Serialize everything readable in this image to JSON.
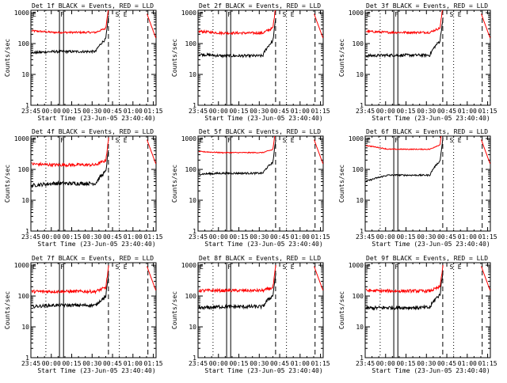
{
  "chart_data": [
    {
      "type": "line",
      "title": "Det 1f BLACK = Events, RED = LLD",
      "ylabel": "Counts/sec",
      "xlabel": "Start Time (23-Jun-05 23:40:40)",
      "xticks": [
        "23:45",
        "00:00",
        "00:15",
        "00:30",
        "00:45",
        "01:00",
        "01:15"
      ],
      "yticks": [
        "1",
        "10",
        "100",
        "1000"
      ],
      "ylim": [
        1,
        1200
      ],
      "yscale": "log",
      "markers": {
        "E": "E",
        "F": "F",
        "S": "S",
        "E2": "E"
      },
      "series": [
        {
          "color": "#ff0000",
          "level_start": 260,
          "level_mid": 230,
          "level_end": 320,
          "noise": 0.06
        },
        {
          "color": "#000000",
          "level_start": 50,
          "level_mid": 55,
          "level_end": 150,
          "noise": 0.08
        }
      ]
    },
    {
      "type": "line",
      "title": "Det 2f BLACK = Events, RED = LLD",
      "ylabel": "Counts/sec",
      "xlabel": "Start Time (23-Jun-05 23:40:40)",
      "xticks": [
        "23:45",
        "00:00",
        "00:15",
        "00:30",
        "00:45",
        "01:00",
        "01:15"
      ],
      "yticks": [
        "1",
        "10",
        "100",
        "1000"
      ],
      "ylim": [
        1,
        1200
      ],
      "yscale": "log",
      "markers": {
        "E": "E",
        "F": "F",
        "S": "S",
        "E2": "E"
      },
      "series": [
        {
          "color": "#ff0000",
          "level_start": 250,
          "level_mid": 220,
          "level_end": 330,
          "noise": 0.08
        },
        {
          "color": "#000000",
          "level_start": 45,
          "level_mid": 40,
          "level_end": 130,
          "noise": 0.09
        }
      ]
    },
    {
      "type": "line",
      "title": "Det 3f BLACK = Events, RED = LLD",
      "ylabel": "Counts/sec",
      "xlabel": "Start Time (23-Jun-05 23:40:40)",
      "xticks": [
        "23:45",
        "00:00",
        "00:15",
        "00:30",
        "00:45",
        "01:00",
        "01:15"
      ],
      "yticks": [
        "1",
        "10",
        "100",
        "1000"
      ],
      "ylim": [
        1,
        1200
      ],
      "yscale": "log",
      "markers": {
        "E": "E",
        "F": "F",
        "S": "S",
        "E2": "E"
      },
      "series": [
        {
          "color": "#ff0000",
          "level_start": 250,
          "level_mid": 230,
          "level_end": 330,
          "noise": 0.07
        },
        {
          "color": "#000000",
          "level_start": 40,
          "level_mid": 42,
          "level_end": 130,
          "noise": 0.09
        }
      ]
    },
    {
      "type": "line",
      "title": "Det 4f BLACK = Events, RED = LLD",
      "ylabel": "Counts/sec",
      "xlabel": "Start Time (23-Jun-05 23:40:40)",
      "xticks": [
        "23:45",
        "00:00",
        "00:15",
        "00:30",
        "00:45",
        "01:00",
        "01:15"
      ],
      "yticks": [
        "1",
        "10",
        "100",
        "1000"
      ],
      "ylim": [
        1,
        1200
      ],
      "yscale": "log",
      "markers": {
        "E": "E",
        "F": "F",
        "S": "S",
        "E2": "E"
      },
      "series": [
        {
          "color": "#ff0000",
          "level_start": 150,
          "level_mid": 140,
          "level_end": 200,
          "noise": 0.1
        },
        {
          "color": "#000000",
          "level_start": 30,
          "level_mid": 35,
          "level_end": 90,
          "noise": 0.12
        }
      ]
    },
    {
      "type": "line",
      "title": "Det 5f BLACK = Events, RED = LLD",
      "ylabel": "Counts/sec",
      "xlabel": "Start Time (23-Jun-05 23:40:40)",
      "xticks": [
        "23:45",
        "00:00",
        "00:15",
        "00:30",
        "00:45",
        "01:00",
        "01:15"
      ],
      "yticks": [
        "1",
        "10",
        "100",
        "1000"
      ],
      "ylim": [
        1,
        1200
      ],
      "yscale": "log",
      "markers": {
        "E": "E",
        "F": "F",
        "S": "S",
        "E2": "E"
      },
      "series": [
        {
          "color": "#ff0000",
          "level_start": 380,
          "level_mid": 350,
          "level_end": 450,
          "noise": 0.03
        },
        {
          "color": "#000000",
          "level_start": 70,
          "level_mid": 75,
          "level_end": 180,
          "noise": 0.06
        }
      ]
    },
    {
      "type": "line",
      "title": "Det 6f BLACK = Events, RED = LLD",
      "ylabel": "Counts/sec",
      "xlabel": "Start Time (23-Jun-05 23:40:40)",
      "xticks": [
        "23:45",
        "00:00",
        "00:15",
        "00:30",
        "00:45",
        "01:00",
        "01:15"
      ],
      "yticks": [
        "1",
        "10",
        "100",
        "1000"
      ],
      "ylim": [
        1,
        1200
      ],
      "yscale": "log",
      "markers": {
        "E": "E",
        "F": "F",
        "S": "S",
        "E2": "E"
      },
      "series": [
        {
          "color": "#ff0000",
          "level_start": 600,
          "level_mid": 450,
          "level_end": 650,
          "noise": 0.03
        },
        {
          "color": "#000000",
          "level_start": 40,
          "level_mid": 65,
          "level_end": 200,
          "noise": 0.05
        }
      ]
    },
    {
      "type": "line",
      "title": "Det 7f BLACK = Events, RED = LLD",
      "ylabel": "Counts/sec",
      "xlabel": "Start Time (23-Jun-05 23:40:40)",
      "xticks": [
        "23:45",
        "00:00",
        "00:15",
        "00:30",
        "00:45",
        "01:00",
        "01:15"
      ],
      "yticks": [
        "1",
        "10",
        "100",
        "1000"
      ],
      "ylim": [
        1,
        1200
      ],
      "yscale": "log",
      "markers": {
        "E": "E",
        "F": "F",
        "S": "S",
        "E2": "E"
      },
      "series": [
        {
          "color": "#ff0000",
          "level_start": 140,
          "level_mid": 140,
          "level_end": 190,
          "noise": 0.1
        },
        {
          "color": "#000000",
          "level_start": 45,
          "level_mid": 50,
          "level_end": 100,
          "noise": 0.1
        }
      ]
    },
    {
      "type": "line",
      "title": "Det 8f BLACK = Events, RED = LLD",
      "ylabel": "Counts/sec",
      "xlabel": "Start Time (23-Jun-05 23:40:40)",
      "xticks": [
        "23:45",
        "00:00",
        "00:15",
        "00:30",
        "00:45",
        "01:00",
        "01:15"
      ],
      "yticks": [
        "1",
        "10",
        "100",
        "1000"
      ],
      "ylim": [
        1,
        1200
      ],
      "yscale": "log",
      "markers": {
        "E": "E",
        "F": "F",
        "S": "S",
        "E2": "E"
      },
      "series": [
        {
          "color": "#ff0000",
          "level_start": 150,
          "level_mid": 150,
          "level_end": 190,
          "noise": 0.1
        },
        {
          "color": "#000000",
          "level_start": 40,
          "level_mid": 45,
          "level_end": 110,
          "noise": 0.12
        }
      ]
    },
    {
      "type": "line",
      "title": "Det 9f BLACK = Events, RED = LLD",
      "ylabel": "Counts/sec",
      "xlabel": "Start Time (23-Jun-05 23:40:40)",
      "xticks": [
        "23:45",
        "00:00",
        "00:15",
        "00:30",
        "00:45",
        "01:00",
        "01:15"
      ],
      "yticks": [
        "1",
        "10",
        "100",
        "1000"
      ],
      "ylim": [
        1,
        1200
      ],
      "yscale": "log",
      "markers": {
        "E": "E",
        "F": "F",
        "S": "S",
        "E2": "E"
      },
      "series": [
        {
          "color": "#ff0000",
          "level_start": 150,
          "level_mid": 145,
          "level_end": 200,
          "noise": 0.1
        },
        {
          "color": "#000000",
          "level_start": 40,
          "level_mid": 42,
          "level_end": 120,
          "noise": 0.12
        }
      ]
    }
  ]
}
